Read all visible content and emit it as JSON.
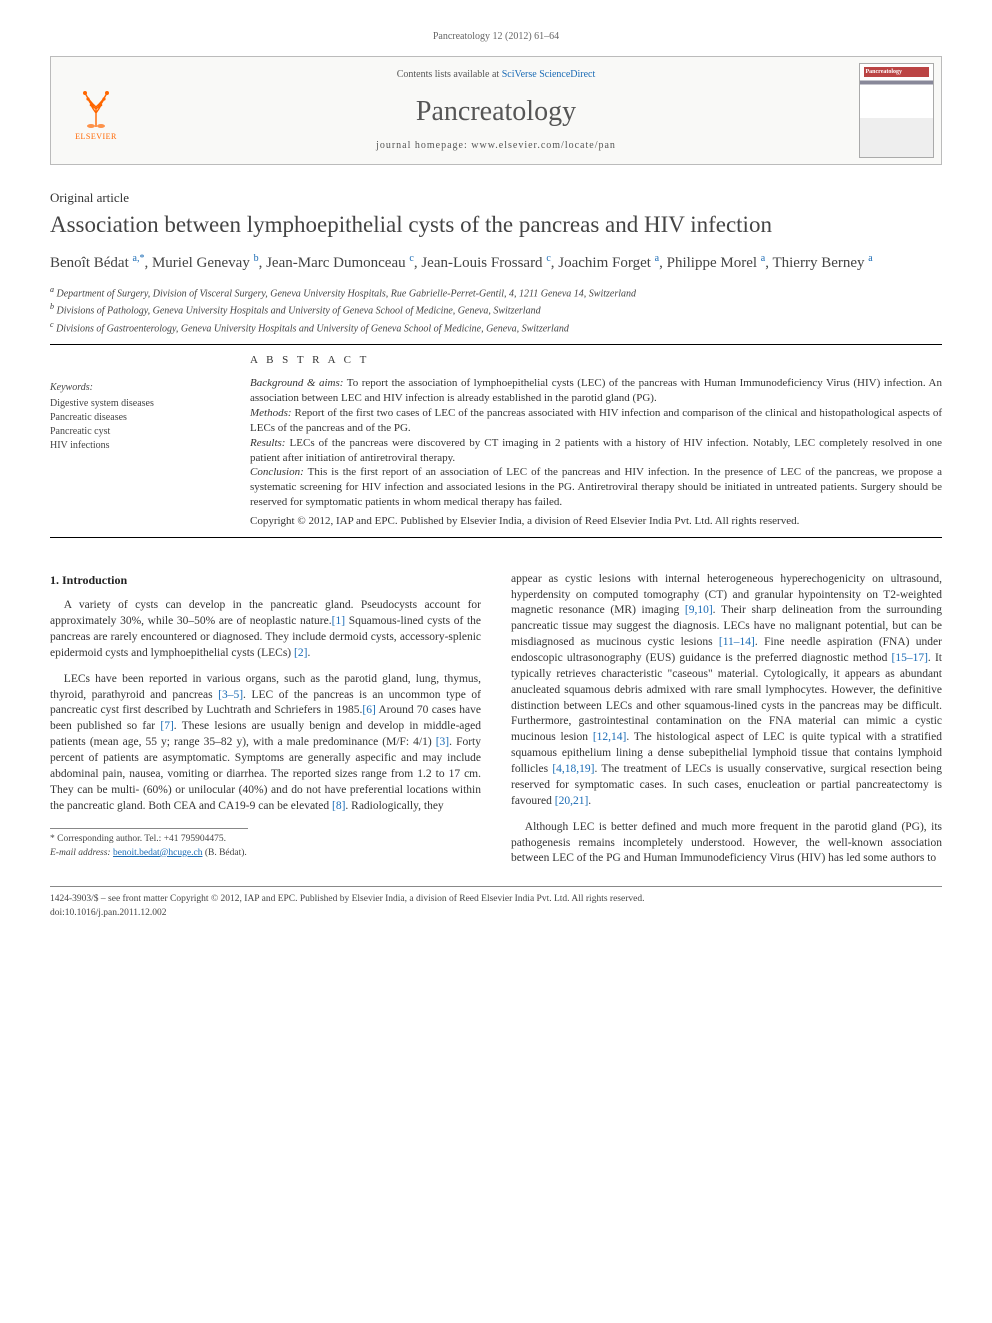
{
  "journal_ref": "Pancreatology 12 (2012) 61–64",
  "header": {
    "publisher_name": "ELSEVIER",
    "contents_prefix": "Contents lists available at ",
    "contents_link": "SciVerse ScienceDirect",
    "journal_name": "Pancreatology",
    "homepage_prefix": "journal homepage: ",
    "homepage_url": "www.elsevier.com/locate/pan",
    "cover_title": "Pancreatology"
  },
  "article": {
    "type": "Original article",
    "title": "Association between lymphoepithelial cysts of the pancreas and HIV infection",
    "authors_html": "Benoît Bédat <sup class='aff'>a,*</sup>, Muriel Genevay <sup class='aff'>b</sup>, Jean-Marc Dumonceau <sup class='aff'>c</sup>, Jean-Louis Frossard <sup class='aff'>c</sup>, Joachim Forget <sup class='aff'>a</sup>, Philippe Morel <sup class='aff'>a</sup>, Thierry Berney <sup class='aff'>a</sup>",
    "affiliations": [
      {
        "label": "a",
        "text": "Department of Surgery, Division of Visceral Surgery, Geneva University Hospitals, Rue Gabrielle-Perret-Gentil, 4, 1211 Geneva 14, Switzerland"
      },
      {
        "label": "b",
        "text": "Divisions of Pathology, Geneva University Hospitals and University of Geneva School of Medicine, Geneva, Switzerland"
      },
      {
        "label": "c",
        "text": "Divisions of Gastroenterology, Geneva University Hospitals and University of Geneva School of Medicine, Geneva, Switzerland"
      }
    ]
  },
  "keywords": {
    "heading": "Keywords:",
    "items": [
      "Digestive system diseases",
      "Pancreatic diseases",
      "Pancreatic cyst",
      "HIV infections"
    ]
  },
  "abstract": {
    "heading": "A B S T R A C T",
    "segments": [
      {
        "label": "Background & aims:",
        "text": " To report the association of lymphoepithelial cysts (LEC) of the pancreas with Human Immunodeficiency Virus (HIV) infection. An association between LEC and HIV infection is already established in the parotid gland (PG)."
      },
      {
        "label": "Methods:",
        "text": " Report of the first two cases of LEC of the pancreas associated with HIV infection and comparison of the clinical and histopathological aspects of LECs of the pancreas and of the PG."
      },
      {
        "label": "Results:",
        "text": " LECs of the pancreas were discovered by CT imaging in 2 patients with a history of HIV infection. Notably, LEC completely resolved in one patient after initiation of antiretroviral therapy."
      },
      {
        "label": "Conclusion:",
        "text": " This is the first report of an association of LEC of the pancreas and HIV infection. In the presence of LEC of the pancreas, we propose a systematic screening for HIV infection and associated lesions in the PG. Antiretroviral therapy should be initiated in untreated patients. Surgery should be reserved for symptomatic patients in whom medical therapy has failed."
      }
    ],
    "copyright": "Copyright © 2012, IAP and EPC. Published by Elsevier India, a division of Reed Elsevier India Pvt. Ltd. All rights reserved."
  },
  "body": {
    "section_heading": "1. Introduction",
    "para1": "A variety of cysts can develop in the pancreatic gland. Pseudocysts account for approximately 30%, while 30–50% are of neoplastic nature.[1] Squamous-lined cysts of the pancreas are rarely encountered or diagnosed. They include dermoid cysts, accessory-splenic epidermoid cysts and lymphoepithelial cysts (LECs) [2].",
    "para2": "LECs have been reported in various organs, such as the parotid gland, lung, thymus, thyroid, parathyroid and pancreas [3–5]. LEC of the pancreas is an uncommon type of pancreatic cyst first described by Luchtrath and Schriefers in 1985.[6] Around 70 cases have been published so far [7]. These lesions are usually benign and develop in middle-aged patients (mean age, 55 y; range 35–82 y), with a male predominance (M/F: 4/1) [3]. Forty percent of patients are asymptomatic. Symptoms are generally aspecific and may include abdominal pain, nausea, vomiting or diarrhea. The reported sizes range from 1.2 to 17 cm. They can be multi- (60%) or unilocular (40%) and do not have preferential locations within the pancreatic gland. Both CEA and CA19-9 can be elevated [8]. Radiologically, they",
    "para3": "appear as cystic lesions with internal heterogeneous hyperechogenicity on ultrasound, hyperdensity on computed tomography (CT) and granular hypointensity on T2-weighted magnetic resonance (MR) imaging [9,10]. Their sharp delineation from the surrounding pancreatic tissue may suggest the diagnosis. LECs have no malignant potential, but can be misdiagnosed as mucinous cystic lesions [11–14]. Fine needle aspiration (FNA) under endoscopic ultrasonography (EUS) guidance is the preferred diagnostic method [15–17]. It typically retrieves characteristic \"caseous\" material. Cytologically, it appears as abundant anucleated squamous debris admixed with rare small lymphocytes. However, the definitive distinction between LECs and other squamous-lined cysts in the pancreas may be difficult. Furthermore, gastrointestinal contamination on the FNA material can mimic a cystic mucinous lesion [12,14]. The histological aspect of LEC is quite typical with a stratified squamous epithelium lining a dense subepithelial lymphoid tissue that contains lymphoid follicles [4,18,19]. The treatment of LECs is usually conservative, surgical resection being reserved for symptomatic cases. In such cases, enucleation or partial pancreatectomy is favoured [20,21].",
    "para4": "Although LEC is better defined and much more frequent in the parotid gland (PG), its pathogenesis remains incompletely understood. However, the well-known association between LEC of the PG and Human Immunodeficiency Virus (HIV) has led some authors to"
  },
  "footnote": {
    "corresp_label": "* Corresponding author. Tel.: ",
    "corresp_tel": "+41 795904475.",
    "email_label": "E-mail address: ",
    "email": "benoit.bedat@hcuge.ch",
    "email_suffix": " (B. Bédat)."
  },
  "bottom": {
    "issn_line": "1424-3903/$ – see front matter Copyright © 2012, IAP and EPC. Published by Elsevier India, a division of Reed Elsevier India Pvt. Ltd. All rights reserved.",
    "doi_line": "doi:10.1016/j.pan.2011.12.002"
  },
  "colors": {
    "link": "#1a6bb5",
    "publisher_orange": "#ff6600",
    "text": "#333333",
    "rule": "#000000"
  }
}
